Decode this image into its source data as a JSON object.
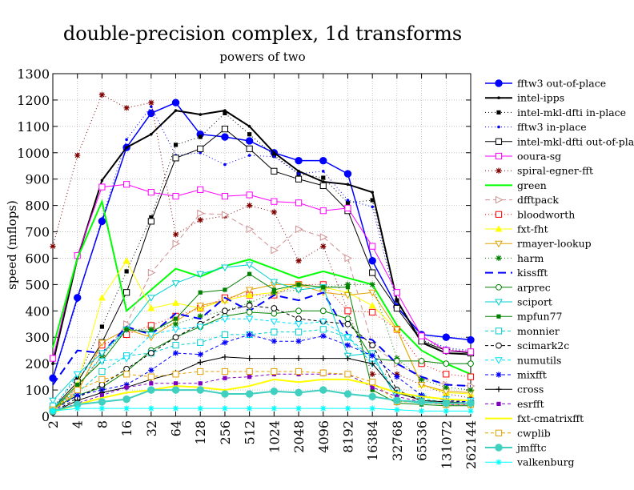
{
  "chart_data": {
    "type": "line",
    "title": "double-precision complex, 1d transforms",
    "subtitle": "powers of two",
    "xlabel": "",
    "ylabel": "speed (mflops)",
    "x_scale": "log2",
    "categories": [
      "2",
      "4",
      "8",
      "16",
      "32",
      "64",
      "128",
      "256",
      "512",
      "1024",
      "2048",
      "4096",
      "8192",
      "16384",
      "32768",
      "65536",
      "131072",
      "262144"
    ],
    "y_ticks": [
      0,
      100,
      200,
      300,
      400,
      500,
      600,
      700,
      800,
      900,
      1000,
      1100,
      1200,
      1300
    ],
    "ylim": [
      0,
      1300
    ],
    "grid": true,
    "legend_position": "right",
    "series": [
      {
        "name": "fftw3 out-of-place",
        "color": "#0000ff",
        "dash": "",
        "width": 1.5,
        "marker": "circle-filled",
        "values": [
          145,
          450,
          740,
          1020,
          1150,
          1190,
          1070,
          1060,
          1045,
          1000,
          970,
          970,
          920,
          590,
          415,
          310,
          300,
          290
        ]
      },
      {
        "name": "intel-ipps",
        "color": "#000000",
        "dash": "",
        "width": 2,
        "marker": "dot",
        "values": [
          200,
          600,
          895,
          1020,
          1070,
          1160,
          1145,
          1160,
          1100,
          1000,
          930,
          890,
          880,
          850,
          440,
          280,
          240,
          235
        ]
      },
      {
        "name": "intel-mkl-dfti in-place",
        "color": "#000000",
        "dash": "1,3",
        "width": 1,
        "marker": "square-filled",
        "values": [
          35,
          145,
          340,
          550,
          755,
          1030,
          1060,
          1150,
          1070,
          990,
          920,
          905,
          810,
          820,
          440,
          290,
          255,
          245
        ]
      },
      {
        "name": "fftw3 in-place",
        "color": "#0000ff",
        "dash": "1,3",
        "width": 1,
        "marker": "dot",
        "values": [
          140,
          440,
          750,
          1050,
          1175,
          990,
          1000,
          955,
          990,
          985,
          920,
          930,
          820,
          795,
          420,
          300,
          260,
          250
        ]
      },
      {
        "name": "intel-mkl-dfti out-of-place",
        "color": "#000000",
        "dash": "",
        "width": 1,
        "marker": "square-open",
        "values": [
          30,
          130,
          280,
          470,
          740,
          980,
          1015,
          1090,
          1015,
          930,
          900,
          875,
          780,
          545,
          410,
          285,
          250,
          240
        ]
      },
      {
        "name": "ooura-sg",
        "color": "#ff00ff",
        "dash": "",
        "width": 1,
        "marker": "square-open",
        "values": [
          220,
          610,
          870,
          880,
          850,
          835,
          860,
          835,
          840,
          815,
          810,
          780,
          790,
          645,
          470,
          305,
          250,
          245
        ]
      },
      {
        "name": "spiral-egner-fft",
        "color": "#800000",
        "dash": "1,3",
        "width": 1,
        "marker": "star",
        "values": [
          645,
          990,
          1220,
          1170,
          1190,
          690,
          745,
          760,
          800,
          775,
          590,
          645,
          400,
          160,
          160,
          120,
          85,
          70
        ]
      },
      {
        "name": "green",
        "color": "#00ff00",
        "dash": "",
        "width": 2,
        "marker": "none",
        "values": [
          260,
          600,
          815,
          400,
          480,
          560,
          530,
          570,
          595,
          560,
          525,
          550,
          525,
          500,
          345,
          250,
          200,
          160
        ]
      },
      {
        "name": "dfftpack",
        "color": "#d09090",
        "dash": "6,4",
        "width": 1,
        "marker": "triangle-right",
        "values": [
          25,
          110,
          230,
          350,
          545,
          655,
          770,
          765,
          710,
          630,
          710,
          680,
          600,
          270,
          200,
          145,
          120,
          115
        ]
      },
      {
        "name": "bloodworth",
        "color": "#ff0000",
        "dash": "1,3",
        "width": 1,
        "marker": "square-open",
        "values": [
          25,
          95,
          270,
          310,
          345,
          380,
          410,
          450,
          460,
          460,
          500,
          500,
          400,
          395,
          330,
          200,
          160,
          150
        ]
      },
      {
        "name": "fxt-fht",
        "color": "#ffff00",
        "dash": "",
        "width": 1,
        "marker": "triangle-up",
        "values": [
          20,
          120,
          450,
          590,
          410,
          430,
          410,
          440,
          460,
          470,
          500,
          490,
          470,
          420,
          330,
          120,
          90,
          85
        ]
      },
      {
        "name": "rmayer-lookup",
        "color": "#e0a000",
        "dash": "",
        "width": 1,
        "marker": "triangle-down",
        "values": [
          20,
          90,
          280,
          330,
          300,
          360,
          420,
          440,
          480,
          500,
          500,
          470,
          460,
          470,
          330,
          120,
          95,
          90
        ]
      },
      {
        "name": "harm",
        "color": "#008000",
        "dash": "1,3",
        "width": 1,
        "marker": "star",
        "values": [
          25,
          110,
          230,
          330,
          330,
          350,
          380,
          400,
          430,
          470,
          480,
          490,
          500,
          500,
          220,
          140,
          110,
          100
        ]
      },
      {
        "name": "kissfft",
        "color": "#0000ff",
        "dash": "10,6",
        "width": 2,
        "marker": "none",
        "values": [
          120,
          250,
          240,
          340,
          310,
          390,
          370,
          450,
          400,
          460,
          440,
          470,
          310,
          290,
          200,
          150,
          120,
          115
        ]
      },
      {
        "name": "arprec",
        "color": "#008000",
        "dash": "",
        "width": 1,
        "marker": "circle-open",
        "values": [
          30,
          80,
          110,
          170,
          250,
          300,
          340,
          380,
          395,
          390,
          400,
          400,
          370,
          220,
          210,
          210,
          200,
          200
        ]
      },
      {
        "name": "sciport",
        "color": "#00d0d0",
        "dash": "",
        "width": 1,
        "marker": "triangle-down",
        "values": [
          60,
          160,
          240,
          330,
          450,
          505,
          540,
          565,
          575,
          510,
          480,
          490,
          230,
          240,
          60,
          50,
          50,
          50
        ]
      },
      {
        "name": "mpfun77",
        "color": "#008000",
        "dash": "",
        "width": 1,
        "marker": "square-filled",
        "values": [
          25,
          120,
          210,
          330,
          320,
          370,
          470,
          480,
          540,
          480,
          500,
          490,
          490,
          100,
          50,
          45,
          40,
          40
        ]
      },
      {
        "name": "monnier",
        "color": "#00d0d0",
        "dash": "4,3",
        "width": 1,
        "marker": "square-open",
        "values": [
          40,
          90,
          170,
          230,
          240,
          270,
          280,
          310,
          310,
          320,
          320,
          330,
          300,
          220,
          90,
          70,
          50,
          50
        ]
      },
      {
        "name": "scimark2c",
        "color": "#000000",
        "dash": "4,3",
        "width": 1,
        "marker": "circle-open",
        "values": [
          15,
          70,
          120,
          180,
          240,
          300,
          350,
          400,
          420,
          410,
          370,
          360,
          350,
          270,
          100,
          60,
          55,
          55
        ]
      },
      {
        "name": "numutils",
        "color": "#00e0ff",
        "dash": "4,3",
        "width": 1,
        "marker": "triangle-down",
        "values": [
          25,
          160,
          210,
          220,
          310,
          330,
          340,
          370,
          370,
          360,
          350,
          360,
          300,
          200,
          90,
          75,
          65,
          60
        ]
      },
      {
        "name": "mixfft",
        "color": "#0000ff",
        "dash": "4,3",
        "width": 1,
        "marker": "star",
        "values": [
          20,
          80,
          100,
          120,
          175,
          240,
          235,
          280,
          310,
          285,
          285,
          305,
          270,
          230,
          150,
          80,
          60,
          55
        ]
      },
      {
        "name": "cross",
        "color": "#000000",
        "dash": "",
        "width": 1,
        "marker": "plus",
        "values": [
          15,
          60,
          90,
          110,
          140,
          165,
          205,
          225,
          220,
          220,
          220,
          220,
          220,
          200,
          90,
          60,
          55,
          50
        ]
      },
      {
        "name": "esrfft",
        "color": "#8000c0",
        "dash": "4,3",
        "width": 1,
        "marker": "square-filled",
        "values": [
          15,
          50,
          80,
          110,
          125,
          125,
          125,
          145,
          150,
          160,
          160,
          160,
          160,
          110,
          75,
          55,
          45,
          45
        ]
      },
      {
        "name": "fxt-cmatrixfft",
        "color": "#ffff00",
        "dash": "",
        "width": 2,
        "marker": "none",
        "values": [
          15,
          45,
          70,
          90,
          100,
          115,
          110,
          100,
          115,
          140,
          130,
          140,
          140,
          120,
          90,
          75,
          65,
          60
        ]
      },
      {
        "name": "cwplib",
        "color": "#e0a000",
        "dash": "4,3",
        "width": 1,
        "marker": "square-open",
        "values": [
          25,
          100,
          140,
          160,
          150,
          160,
          170,
          170,
          170,
          170,
          170,
          165,
          160,
          130,
          55,
          55,
          45,
          45
        ]
      },
      {
        "name": "jmfftc",
        "color": "#40d0c0",
        "dash": "",
        "width": 2,
        "marker": "circle-filled",
        "values": [
          20,
          45,
          55,
          65,
          100,
          100,
          100,
          85,
          85,
          95,
          90,
          100,
          85,
          75,
          60,
          55,
          50,
          50
        ]
      },
      {
        "name": "valkenburg",
        "color": "#00ffff",
        "dash": "",
        "width": 1,
        "marker": "star",
        "values": [
          20,
          30,
          30,
          30,
          30,
          30,
          30,
          30,
          30,
          30,
          30,
          30,
          30,
          30,
          25,
          20,
          20,
          20
        ]
      }
    ]
  }
}
